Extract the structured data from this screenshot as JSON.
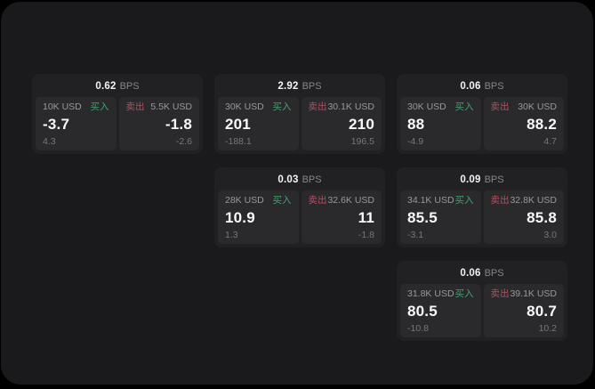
{
  "labels": {
    "bps": "BPS",
    "buy": "买入",
    "sell": "卖出"
  },
  "colors": {
    "buy": "#3fa46f",
    "sell": "#b05062",
    "panel_bg": "#1a1a1c",
    "card_bg": "#212124",
    "tile_bg": "#2a2a2d"
  },
  "cards": [
    {
      "bps": "0.62",
      "grid": {
        "col": 1,
        "row": 1
      },
      "buy": {
        "notional": "10K USD",
        "price": "-3.7",
        "change": "4.3"
      },
      "sell": {
        "notional": "5.5K USD",
        "price": "-1.8",
        "change": "-2.6"
      }
    },
    {
      "bps": "2.92",
      "grid": {
        "col": 2,
        "row": 1
      },
      "buy": {
        "notional": "30K USD",
        "price": "201",
        "change": "-188.1"
      },
      "sell": {
        "notional": "30.1K USD",
        "price": "210",
        "change": "196.5"
      }
    },
    {
      "bps": "0.06",
      "grid": {
        "col": 3,
        "row": 1
      },
      "buy": {
        "notional": "30K USD",
        "price": "88",
        "change": "-4.9"
      },
      "sell": {
        "notional": "30K USD",
        "price": "88.2",
        "change": "4.7"
      }
    },
    {
      "bps": "0.03",
      "grid": {
        "col": 2,
        "row": 2
      },
      "buy": {
        "notional": "28K USD",
        "price": "10.9",
        "change": "1.3"
      },
      "sell": {
        "notional": "32.6K USD",
        "price": "11",
        "change": "-1.8"
      }
    },
    {
      "bps": "0.09",
      "grid": {
        "col": 3,
        "row": 2
      },
      "buy": {
        "notional": "34.1K USD",
        "price": "85.5",
        "change": "-3.1"
      },
      "sell": {
        "notional": "32.8K USD",
        "price": "85.8",
        "change": "3.0"
      }
    },
    {
      "bps": "0.06",
      "grid": {
        "col": 3,
        "row": 3
      },
      "buy": {
        "notional": "31.8K USD",
        "price": "80.5",
        "change": "-10.8"
      },
      "sell": {
        "notional": "39.1K USD",
        "price": "80.7",
        "change": "10.2"
      }
    }
  ]
}
